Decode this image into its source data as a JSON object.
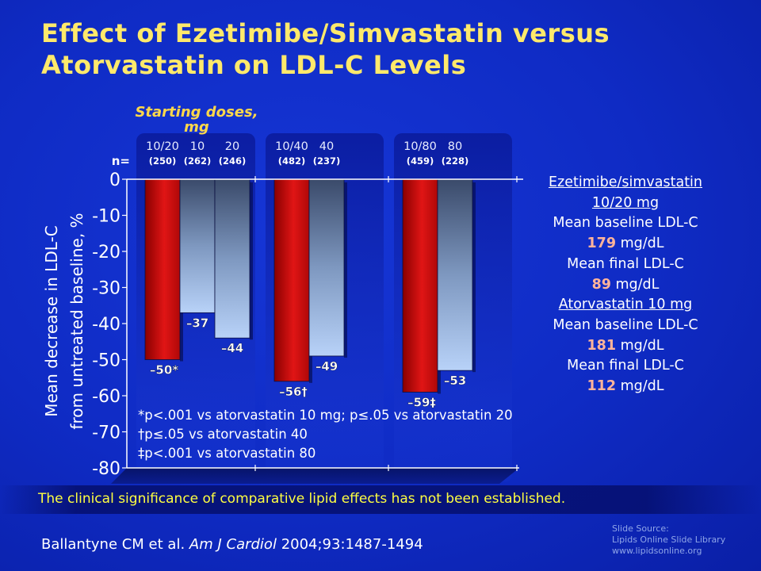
{
  "title": {
    "line1": "Effect of Ezetimibe/Simvastatin versus",
    "line2": "Atorvastatin on LDL-C Levels"
  },
  "chart_data": {
    "type": "bar",
    "ylabel_line1": "Mean decrease in LDL-C",
    "ylabel_line2": "from untreated baseline, %",
    "ylim": [
      -80,
      0
    ],
    "yticks": [
      "0",
      "-10",
      "-20",
      "-30",
      "-40",
      "-50",
      "-60",
      "-70",
      "-80"
    ],
    "dose_header_line1": "Starting doses,",
    "dose_header_line2": "mg",
    "n_label": "n=",
    "legend": "none",
    "grid": false,
    "colors": {
      "ezetimibe_simvastatin": "#d01010",
      "atorvastatin": "#a9c6ee"
    },
    "groups": [
      {
        "bars": [
          {
            "dose": "10/20",
            "n": "(250)",
            "value": -50,
            "label": "–50*",
            "drug": "ezetimibe_simvastatin"
          },
          {
            "dose": "10",
            "n": "(262)",
            "value": -37,
            "label": "–37",
            "drug": "atorvastatin"
          },
          {
            "dose": "20",
            "n": "(246)",
            "value": -44,
            "label": "–44",
            "drug": "atorvastatin"
          }
        ]
      },
      {
        "bars": [
          {
            "dose": "10/40",
            "n": "(482)",
            "value": -56,
            "label": "–56†",
            "drug": "ezetimibe_simvastatin"
          },
          {
            "dose": "40",
            "n": "(237)",
            "value": -49,
            "label": "–49",
            "drug": "atorvastatin"
          }
        ]
      },
      {
        "bars": [
          {
            "dose": "10/80",
            "n": "(459)",
            "value": -59,
            "label": "–59‡",
            "drug": "ezetimibe_simvastatin"
          },
          {
            "dose": "80",
            "n": "(228)",
            "value": -53,
            "label": "–53",
            "drug": "atorvastatin"
          }
        ]
      }
    ],
    "footnotes": [
      "*p<.001 vs atorvastatin 10 mg; p≤.05 vs atorvastatin 20",
      "†p≤.05 vs atorvastatin 40",
      "‡p<.001 vs atorvastatin 80"
    ]
  },
  "info": {
    "eze_heading_line1": "Ezetimibe/simvastatin",
    "eze_heading_line2": "10/20 mg",
    "eze_baseline_label": "Mean baseline LDL-C",
    "eze_baseline_value": "179",
    "eze_baseline_unit": "mg/dL",
    "eze_final_label": "Mean final LDL-C",
    "eze_final_value": "89",
    "eze_final_unit": "mg/dL",
    "ator_heading": "Atorvastatin 10 mg",
    "ator_baseline_label": "Mean baseline LDL-C",
    "ator_baseline_value": "181",
    "ator_baseline_unit": "mg/dL",
    "ator_final_label": "Mean final LDL-C",
    "ator_final_value": "112",
    "ator_final_unit": "mg/dL"
  },
  "disclaimer": "The clinical significance of comparative lipid effects has not been established.",
  "citation": {
    "authors": "Ballantyne CM et al.",
    "journal": "Am J Cardiol",
    "details": "2004;93:1487-1494"
  },
  "source": {
    "line1": "Slide Source:",
    "line2": "Lipids Online Slide Library",
    "line3": "www.lipidsonline.org"
  }
}
